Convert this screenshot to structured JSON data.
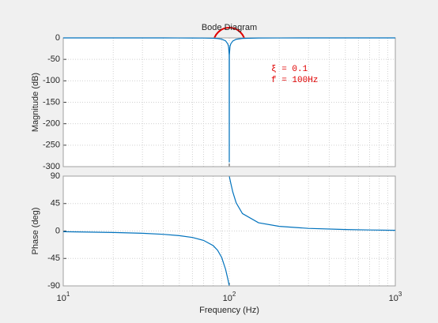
{
  "chart_data": [
    {
      "type": "line",
      "title": "Bode Diagram",
      "ylabel": "Magnitude (dB)",
      "xscale": "log",
      "xlim": [
        10,
        1000
      ],
      "ylim": [
        -300,
        0
      ],
      "yticks": [
        0,
        -50,
        -100,
        -150,
        -200,
        -250,
        -300
      ],
      "xgrid_minor": [
        20,
        30,
        40,
        50,
        60,
        70,
        80,
        90,
        200,
        300,
        400,
        500,
        600,
        700,
        800,
        900
      ],
      "grid": true,
      "x": [
        10,
        20,
        30,
        40,
        50,
        60,
        70,
        80,
        85,
        90,
        95,
        98,
        99,
        99.9,
        100,
        100.1,
        101,
        102,
        105,
        110,
        120,
        150,
        200,
        300,
        500,
        700,
        1000
      ],
      "series": [
        {
          "color": "#0072bd",
          "values": [
            0,
            0,
            -0.01,
            -0.02,
            -0.08,
            -0.17,
            -0.33,
            -0.78,
            -1.38,
            -2.8,
            -6.8,
            -14.1,
            -20,
            -40,
            -290,
            -40,
            -20,
            -14.2,
            -7.2,
            -3.2,
            -1.13,
            -0.24,
            -0.08,
            -0.02,
            0,
            0,
            0
          ]
        }
      ],
      "annotations": [
        "ξ  = 0.1",
        "f = 100Hz"
      ]
    },
    {
      "type": "line",
      "ylabel": "Phase (deg)",
      "xlabel": "Frequency  (Hz)",
      "xscale": "log",
      "xlim": [
        10,
        1000
      ],
      "ylim": [
        -90,
        90
      ],
      "yticks": [
        90,
        45,
        0,
        -45,
        -90
      ],
      "xticks": [
        {
          "value": 10,
          "label": "10^1"
        },
        {
          "value": 100,
          "label": "10^2"
        },
        {
          "value": 1000,
          "label": "10^3"
        }
      ],
      "xgrid_minor": [
        20,
        30,
        40,
        50,
        60,
        70,
        80,
        90,
        200,
        300,
        400,
        500,
        600,
        700,
        800,
        900
      ],
      "grid": true,
      "x": [
        10,
        20,
        30,
        40,
        50,
        60,
        70,
        80,
        85,
        90,
        95,
        98,
        99,
        99.9,
        100,
        100.1,
        101,
        102,
        105,
        110,
        120,
        150,
        200,
        300,
        500,
        700,
        1000
      ],
      "series": [
        {
          "color": "#0072bd",
          "values": [
            -1.16,
            -2.39,
            -3.77,
            -5.44,
            -7.6,
            -10.6,
            -15.4,
            -24.0,
            -31.5,
            -43.4,
            -62.8,
            -78.6,
            -84.3,
            -89.4,
            null,
            89.4,
            84.3,
            78.8,
            64.0,
            46.3,
            28.6,
            13.5,
            7.6,
            4.3,
            2.4,
            1.67,
            1.16
          ]
        }
      ]
    }
  ]
}
